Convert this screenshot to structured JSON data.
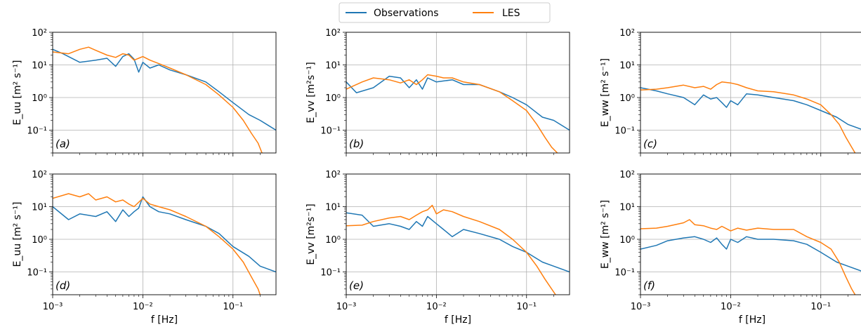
{
  "legend": {
    "entries": [
      {
        "label": "Observations",
        "color": "#1f77b4"
      },
      {
        "label": "LES",
        "color": "#ff7f0e"
      }
    ]
  },
  "axes": {
    "xlabel": "f [Hz]",
    "x_ticks": [
      "10⁻³",
      "10⁻²",
      "10⁻¹"
    ],
    "y_ticks": [
      "10⁻¹",
      "10⁰",
      "10¹",
      "10²"
    ]
  },
  "chart_data": [
    {
      "type": "line",
      "panel_tag": "(a)",
      "ylabel": "E_uu [m² s⁻¹]",
      "xscale": "log",
      "yscale": "log",
      "xlim": [
        0.001,
        0.3
      ],
      "ylim": [
        0.02,
        100
      ],
      "grid": true,
      "series": [
        {
          "name": "Observations",
          "x": [
            0.001,
            0.0013,
            0.002,
            0.003,
            0.004,
            0.005,
            0.006,
            0.007,
            0.008,
            0.009,
            0.01,
            0.012,
            0.015,
            0.02,
            0.03,
            0.05,
            0.07,
            0.1,
            0.15,
            0.2,
            0.3
          ],
          "y": [
            30,
            22,
            12,
            14,
            16,
            9,
            18,
            22,
            15,
            6,
            12,
            8,
            10,
            7,
            5,
            3,
            1.5,
            0.7,
            0.3,
            0.2,
            0.1
          ]
        },
        {
          "name": "LES",
          "x": [
            0.001,
            0.0015,
            0.002,
            0.0025,
            0.003,
            0.004,
            0.005,
            0.006,
            0.007,
            0.008,
            0.009,
            0.01,
            0.012,
            0.015,
            0.02,
            0.03,
            0.05,
            0.07,
            0.1,
            0.13,
            0.16,
            0.19,
            0.21
          ],
          "y": [
            25,
            22,
            30,
            35,
            28,
            20,
            17,
            22,
            20,
            14,
            16,
            18,
            14,
            11,
            8,
            5,
            2.5,
            1.2,
            0.5,
            0.2,
            0.08,
            0.04,
            0.02
          ]
        }
      ]
    },
    {
      "type": "line",
      "panel_tag": "(b)",
      "ylabel": "E_vv [m²s⁻¹]",
      "xscale": "log",
      "yscale": "log",
      "xlim": [
        0.001,
        0.3
      ],
      "ylim": [
        0.02,
        100
      ],
      "grid": true,
      "series": [
        {
          "name": "Observations",
          "x": [
            0.001,
            0.0013,
            0.002,
            0.003,
            0.004,
            0.005,
            0.006,
            0.007,
            0.008,
            0.01,
            0.015,
            0.02,
            0.03,
            0.05,
            0.07,
            0.1,
            0.15,
            0.2,
            0.3
          ],
          "y": [
            3,
            1.4,
            2,
            4.5,
            4,
            2,
            3.5,
            1.8,
            4,
            3,
            3.5,
            2.5,
            2.5,
            1.5,
            1,
            0.6,
            0.25,
            0.2,
            0.1
          ]
        },
        {
          "name": "LES",
          "x": [
            0.001,
            0.0015,
            0.002,
            0.003,
            0.004,
            0.005,
            0.006,
            0.007,
            0.008,
            0.01,
            0.012,
            0.015,
            0.02,
            0.03,
            0.05,
            0.07,
            0.1,
            0.13,
            0.16,
            0.19,
            0.22
          ],
          "y": [
            1.8,
            3,
            4,
            3.5,
            2.8,
            3.5,
            2.5,
            3.5,
            5,
            4.5,
            4,
            4,
            3,
            2.5,
            1.5,
            0.8,
            0.4,
            0.15,
            0.06,
            0.03,
            0.02
          ]
        }
      ]
    },
    {
      "type": "line",
      "panel_tag": "(c)",
      "ylabel": "E_ww [m² s⁻¹]",
      "xscale": "log",
      "yscale": "log",
      "xlim": [
        0.001,
        0.3
      ],
      "ylim": [
        0.02,
        100
      ],
      "grid": true,
      "series": [
        {
          "name": "Observations",
          "x": [
            0.001,
            0.0015,
            0.002,
            0.003,
            0.004,
            0.005,
            0.006,
            0.007,
            0.008,
            0.009,
            0.01,
            0.012,
            0.015,
            0.02,
            0.03,
            0.05,
            0.07,
            0.1,
            0.15,
            0.2,
            0.3
          ],
          "y": [
            2,
            1.6,
            1.3,
            1.0,
            0.6,
            1.2,
            0.9,
            1.0,
            0.7,
            0.5,
            0.8,
            0.6,
            1.3,
            1.2,
            1.0,
            0.8,
            0.6,
            0.4,
            0.25,
            0.15,
            0.1
          ]
        },
        {
          "name": "LES",
          "x": [
            0.001,
            0.0015,
            0.002,
            0.003,
            0.004,
            0.005,
            0.006,
            0.007,
            0.008,
            0.01,
            0.012,
            0.015,
            0.02,
            0.03,
            0.05,
            0.07,
            0.1,
            0.13,
            0.16,
            0.19,
            0.22,
            0.24
          ],
          "y": [
            1.7,
            1.8,
            2.0,
            2.4,
            2.0,
            2.2,
            1.8,
            2.5,
            3.0,
            2.8,
            2.5,
            2.0,
            1.6,
            1.5,
            1.2,
            0.9,
            0.6,
            0.3,
            0.15,
            0.06,
            0.03,
            0.02
          ]
        }
      ]
    },
    {
      "type": "line",
      "panel_tag": "(d)",
      "ylabel": "E_uu [m² s⁻¹]",
      "xscale": "log",
      "yscale": "log",
      "xlim": [
        0.001,
        0.3
      ],
      "ylim": [
        0.02,
        100
      ],
      "grid": true,
      "series": [
        {
          "name": "Observations",
          "x": [
            0.001,
            0.0015,
            0.002,
            0.003,
            0.004,
            0.005,
            0.006,
            0.007,
            0.008,
            0.009,
            0.01,
            0.012,
            0.015,
            0.02,
            0.03,
            0.05,
            0.07,
            0.1,
            0.15,
            0.2,
            0.3
          ],
          "y": [
            10,
            4,
            6,
            5,
            7,
            3.5,
            8,
            5,
            7,
            9,
            20,
            10,
            7,
            6,
            4,
            2.5,
            1.5,
            0.6,
            0.3,
            0.15,
            0.1
          ]
        },
        {
          "name": "LES",
          "x": [
            0.001,
            0.0015,
            0.002,
            0.0025,
            0.003,
            0.004,
            0.005,
            0.006,
            0.007,
            0.008,
            0.01,
            0.012,
            0.015,
            0.02,
            0.03,
            0.05,
            0.07,
            0.1,
            0.13,
            0.16,
            0.19,
            0.2
          ],
          "y": [
            18,
            25,
            20,
            25,
            16,
            20,
            14,
            16,
            12,
            10,
            18,
            12,
            10,
            8,
            5,
            2.5,
            1.2,
            0.5,
            0.2,
            0.07,
            0.03,
            0.02
          ]
        }
      ]
    },
    {
      "type": "line",
      "panel_tag": "(e)",
      "ylabel": "E_vv [m²s⁻¹]",
      "xscale": "log",
      "yscale": "log",
      "xlim": [
        0.001,
        0.3
      ],
      "ylim": [
        0.02,
        100
      ],
      "grid": true,
      "series": [
        {
          "name": "Observations",
          "x": [
            0.001,
            0.0015,
            0.002,
            0.003,
            0.004,
            0.005,
            0.006,
            0.007,
            0.008,
            0.01,
            0.012,
            0.015,
            0.02,
            0.03,
            0.05,
            0.07,
            0.1,
            0.15,
            0.2,
            0.3
          ],
          "y": [
            6.5,
            5.5,
            2.5,
            3.0,
            2.5,
            2.0,
            3.5,
            2.5,
            5.0,
            3.0,
            2.0,
            1.2,
            2.0,
            1.5,
            1.0,
            0.6,
            0.4,
            0.2,
            0.15,
            0.1
          ]
        },
        {
          "name": "LES",
          "x": [
            0.001,
            0.0015,
            0.002,
            0.003,
            0.004,
            0.005,
            0.006,
            0.007,
            0.008,
            0.009,
            0.01,
            0.012,
            0.015,
            0.02,
            0.03,
            0.05,
            0.07,
            0.1,
            0.13,
            0.16,
            0.19,
            0.21
          ],
          "y": [
            2.6,
            2.7,
            3.5,
            4.5,
            5,
            4,
            5.5,
            7,
            8,
            11,
            6,
            8,
            7,
            5,
            3.5,
            2,
            1.0,
            0.4,
            0.15,
            0.06,
            0.03,
            0.02
          ]
        }
      ]
    },
    {
      "type": "line",
      "panel_tag": "(f)",
      "ylabel": "E_ww [m² s⁻¹]",
      "xscale": "log",
      "yscale": "log",
      "xlim": [
        0.001,
        0.3
      ],
      "ylim": [
        0.02,
        100
      ],
      "grid": true,
      "series": [
        {
          "name": "Observations",
          "x": [
            0.001,
            0.0015,
            0.002,
            0.003,
            0.004,
            0.005,
            0.006,
            0.007,
            0.008,
            0.009,
            0.01,
            0.012,
            0.015,
            0.02,
            0.03,
            0.05,
            0.07,
            0.1,
            0.15,
            0.2,
            0.3
          ],
          "y": [
            0.5,
            0.65,
            0.9,
            1.1,
            1.2,
            1.0,
            0.8,
            1.1,
            0.7,
            0.5,
            1.0,
            0.8,
            1.2,
            1.0,
            1.0,
            0.9,
            0.7,
            0.4,
            0.2,
            0.15,
            0.1
          ]
        },
        {
          "name": "LES",
          "x": [
            0.001,
            0.0015,
            0.002,
            0.003,
            0.0035,
            0.004,
            0.005,
            0.006,
            0.007,
            0.008,
            0.01,
            0.012,
            0.015,
            0.02,
            0.03,
            0.05,
            0.07,
            0.1,
            0.13,
            0.16,
            0.19,
            0.22,
            0.24
          ],
          "y": [
            2.1,
            2.2,
            2.5,
            3.2,
            4,
            2.8,
            2.6,
            2.2,
            2.0,
            2.5,
            1.8,
            2.2,
            1.9,
            2.2,
            2.0,
            2.0,
            1.2,
            0.8,
            0.5,
            0.2,
            0.07,
            0.03,
            0.02
          ]
        }
      ]
    }
  ]
}
